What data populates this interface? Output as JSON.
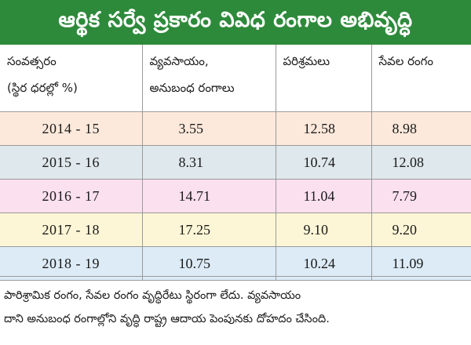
{
  "title": "ఆర్థిక సర్వే ప్రకారం వివిధ రంగాల అభివృద్ధి",
  "colors": {
    "title_bg": "#2e8a3b",
    "title_text": "#ffffff",
    "row_backgrounds": [
      "#fde9db",
      "#dfe8ec",
      "#fbe0f0",
      "#fdf6d6",
      "#dcebf6"
    ]
  },
  "table": {
    "headers": {
      "year_line1": "సంవత్సరం",
      "year_line2": "(స్థిర ధరల్లో %)",
      "agriculture_line1": "వ్యవసాయం,",
      "agriculture_line2": "అనుబంధ రంగాలు",
      "industries": "పరిశ్రమలు",
      "services": "సేవల రంగం"
    },
    "rows": [
      {
        "year": "2014 - 15",
        "agriculture": "3.55",
        "industries": "12.58",
        "services": "8.98"
      },
      {
        "year": "2015 - 16",
        "agriculture": "8.31",
        "industries": "10.74",
        "services": "12.08"
      },
      {
        "year": "2016 - 17",
        "agriculture": "14.71",
        "industries": "11.04",
        "services": "7.79"
      },
      {
        "year": "2017 - 18",
        "agriculture": "17.25",
        "industries": "9.10",
        "services": "9.20"
      },
      {
        "year": "2018 - 19",
        "agriculture": "10.75",
        "industries": "10.24",
        "services": "11.09"
      }
    ]
  },
  "footer": {
    "line1": "పారిశ్రామిక రంగం, సేవల రంగం వృద్ధిరేటు స్థిరంగా లేదు. వ్యవసాయం",
    "line2": "దాని అనుబంధ రంగాల్లోని వృద్ధి రాష్ట్ర ఆదాయ పెంపునకు దోహదం చేసింది."
  }
}
